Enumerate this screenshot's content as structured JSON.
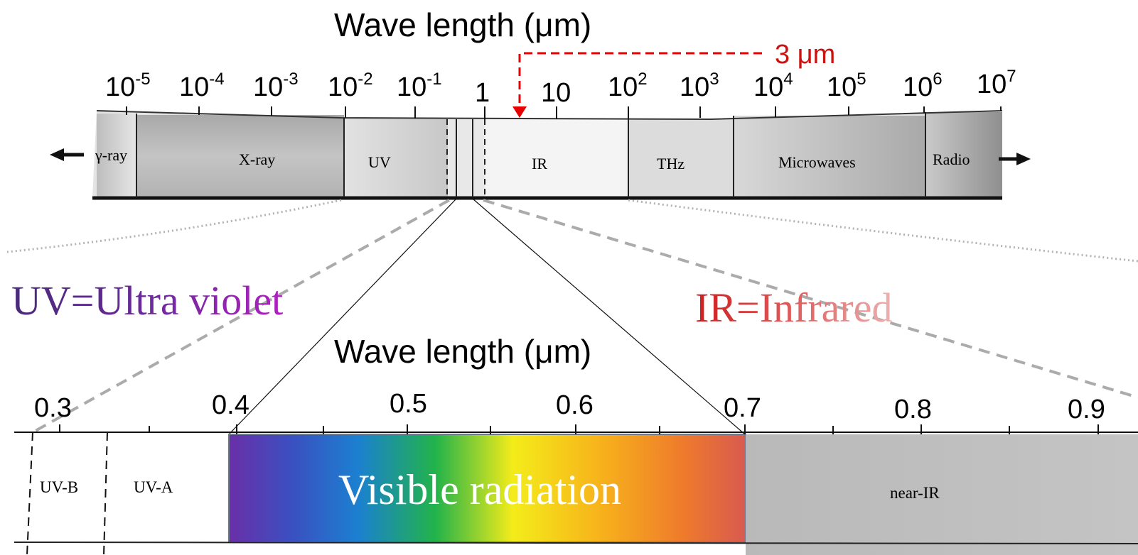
{
  "top_scale": {
    "title": "Wave length (μm)",
    "ticks": [
      {
        "base": "10",
        "exp": "-5"
      },
      {
        "base": "10",
        "exp": "-4"
      },
      {
        "base": "10",
        "exp": "-3"
      },
      {
        "base": "10",
        "exp": "-2"
      },
      {
        "base": "10",
        "exp": "-1"
      },
      {
        "base": "1",
        "exp": ""
      },
      {
        "base": "10",
        "exp": ""
      },
      {
        "base": "10",
        "exp": "2"
      },
      {
        "base": "10",
        "exp": "3"
      },
      {
        "base": "10",
        "exp": "4"
      },
      {
        "base": "10",
        "exp": "5"
      },
      {
        "base": "10",
        "exp": "6"
      },
      {
        "base": "10",
        "exp": "7"
      }
    ],
    "bands": [
      "γ-ray",
      "X-ray",
      "UV",
      "IR",
      "THz",
      "Microwaves",
      "Radio"
    ],
    "marker_label": "3 μm"
  },
  "definitions": {
    "uv": "UV=Ultra violet",
    "ir": "IR=Infrared"
  },
  "bottom_scale": {
    "title": "Wave length (μm)",
    "ticks": [
      "0.3",
      "0.4",
      "0.5",
      "0.6",
      "0.7",
      "0.8",
      "0.9"
    ],
    "bands": [
      "UV-B",
      "UV-A",
      "near-IR"
    ],
    "visible_label": "Visible radiation"
  },
  "colors": {
    "marker": "#e60000",
    "spectrum": [
      "#6a2fa8",
      "#2750c8",
      "#1b8fd0",
      "#22b34a",
      "#f4ec1a",
      "#f7b21b",
      "#ee6c2a",
      "#d8504f"
    ],
    "band_gray": "#b8b8b8"
  }
}
